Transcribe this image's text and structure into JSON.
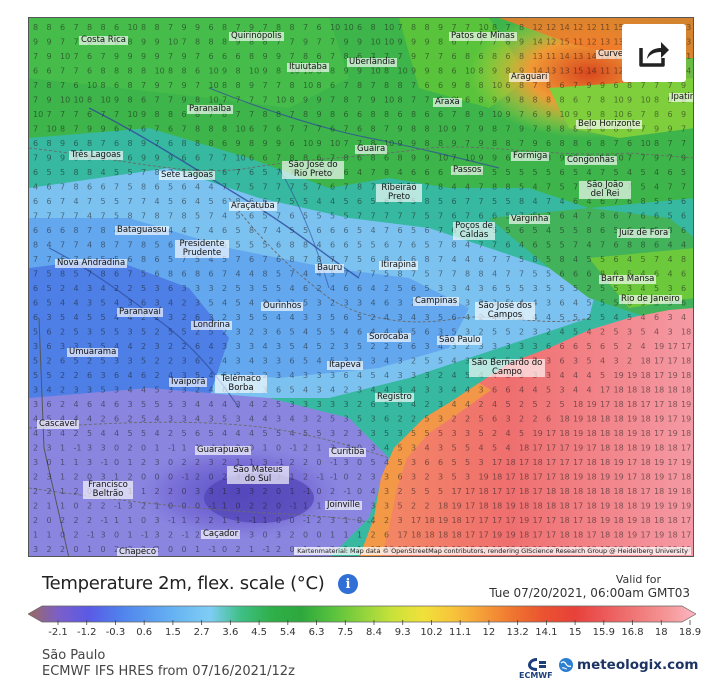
{
  "map": {
    "title": "Temperature 2m, flex. scale (°C)",
    "valid_label": "Valid for",
    "valid_date": "Tue 07/20/2021, 06:00am GMT03",
    "location": "São Paulo",
    "model": "ECMWF IFS HRES from 07/16/2021/12z",
    "attribution": "Kartenmaterial: Map data © OpenStreetMap contributors, rendering GIScience Research Group @ Heidelberg University",
    "cities": [
      "Costa Rica",
      "Quirinópolis",
      "Patos de Minas",
      "Curvelo",
      "Ituiutaba",
      "Uberlândia",
      "Araguari",
      "Sete Lagoas",
      "Araxá",
      "Paranaíba",
      "Belo Horizonte",
      "Ipatinga",
      "Guaíra",
      "Formiga",
      "Congonhas",
      "Três Lagoas",
      "São José do Rio Preto",
      "Passos",
      "Ribeirão Preto",
      "São João del Rei",
      "Araçatuba",
      "Varginha",
      "Poços de Caldas",
      "Juiz de Fora",
      "Bataguassu",
      "Presidente Prudente",
      "Nova Andradina",
      "Itirapina",
      "Barra Mansa",
      "Bauru",
      "Campinas",
      "Rio de Janeiro",
      "Paranavaí",
      "Ourinhos",
      "São José dos Campos",
      "Londrina",
      "Sorocaba",
      "São Paulo",
      "Umuarama",
      "Itapeva",
      "São Bernardo do Campo",
      "Telêmaco Borba",
      "Ivaiporã",
      "Registro",
      "Cascavel",
      "Curitiba",
      "Guarapuava",
      "São Mateus do Sul",
      "Francisco Beltrão",
      "Joinville",
      "Caçador",
      "Chapecó"
    ]
  },
  "legend": {
    "tick_labels": [
      "-2.1",
      "-1.2",
      "-0.3",
      "0.6",
      "1.5",
      "2.7",
      "3.6",
      "4.5",
      "5.4",
      "6.3",
      "7.5",
      "8.4",
      "9.3",
      "10.2",
      "11.1",
      "12",
      "13.2",
      "14.1",
      "15",
      "15.9",
      "16.8",
      "18",
      "18.9"
    ],
    "color_stops": [
      "#9b6a5e",
      "#7b5fc8",
      "#5a5ae6",
      "#5080ec",
      "#5a9df0",
      "#6ab8f2",
      "#7fcdf5",
      "#3fbf86",
      "#2fb04a",
      "#2ea83d",
      "#56c13d",
      "#8fd33c",
      "#c8e23a",
      "#f1e13a",
      "#f7c43a",
      "#f59c38",
      "#ef7430",
      "#ea5230",
      "#e8413a",
      "#ec5a5a",
      "#f07777",
      "#f59595",
      "#fbb7c4"
    ]
  },
  "branding": {
    "ecmwf": "ECMWF",
    "site": "meteologix.com"
  },
  "icons": {
    "share": "share-icon",
    "info": "info-icon",
    "brand": "meteologix-globe-icon",
    "ecmwf": "ecmwf-logo-icon"
  }
}
